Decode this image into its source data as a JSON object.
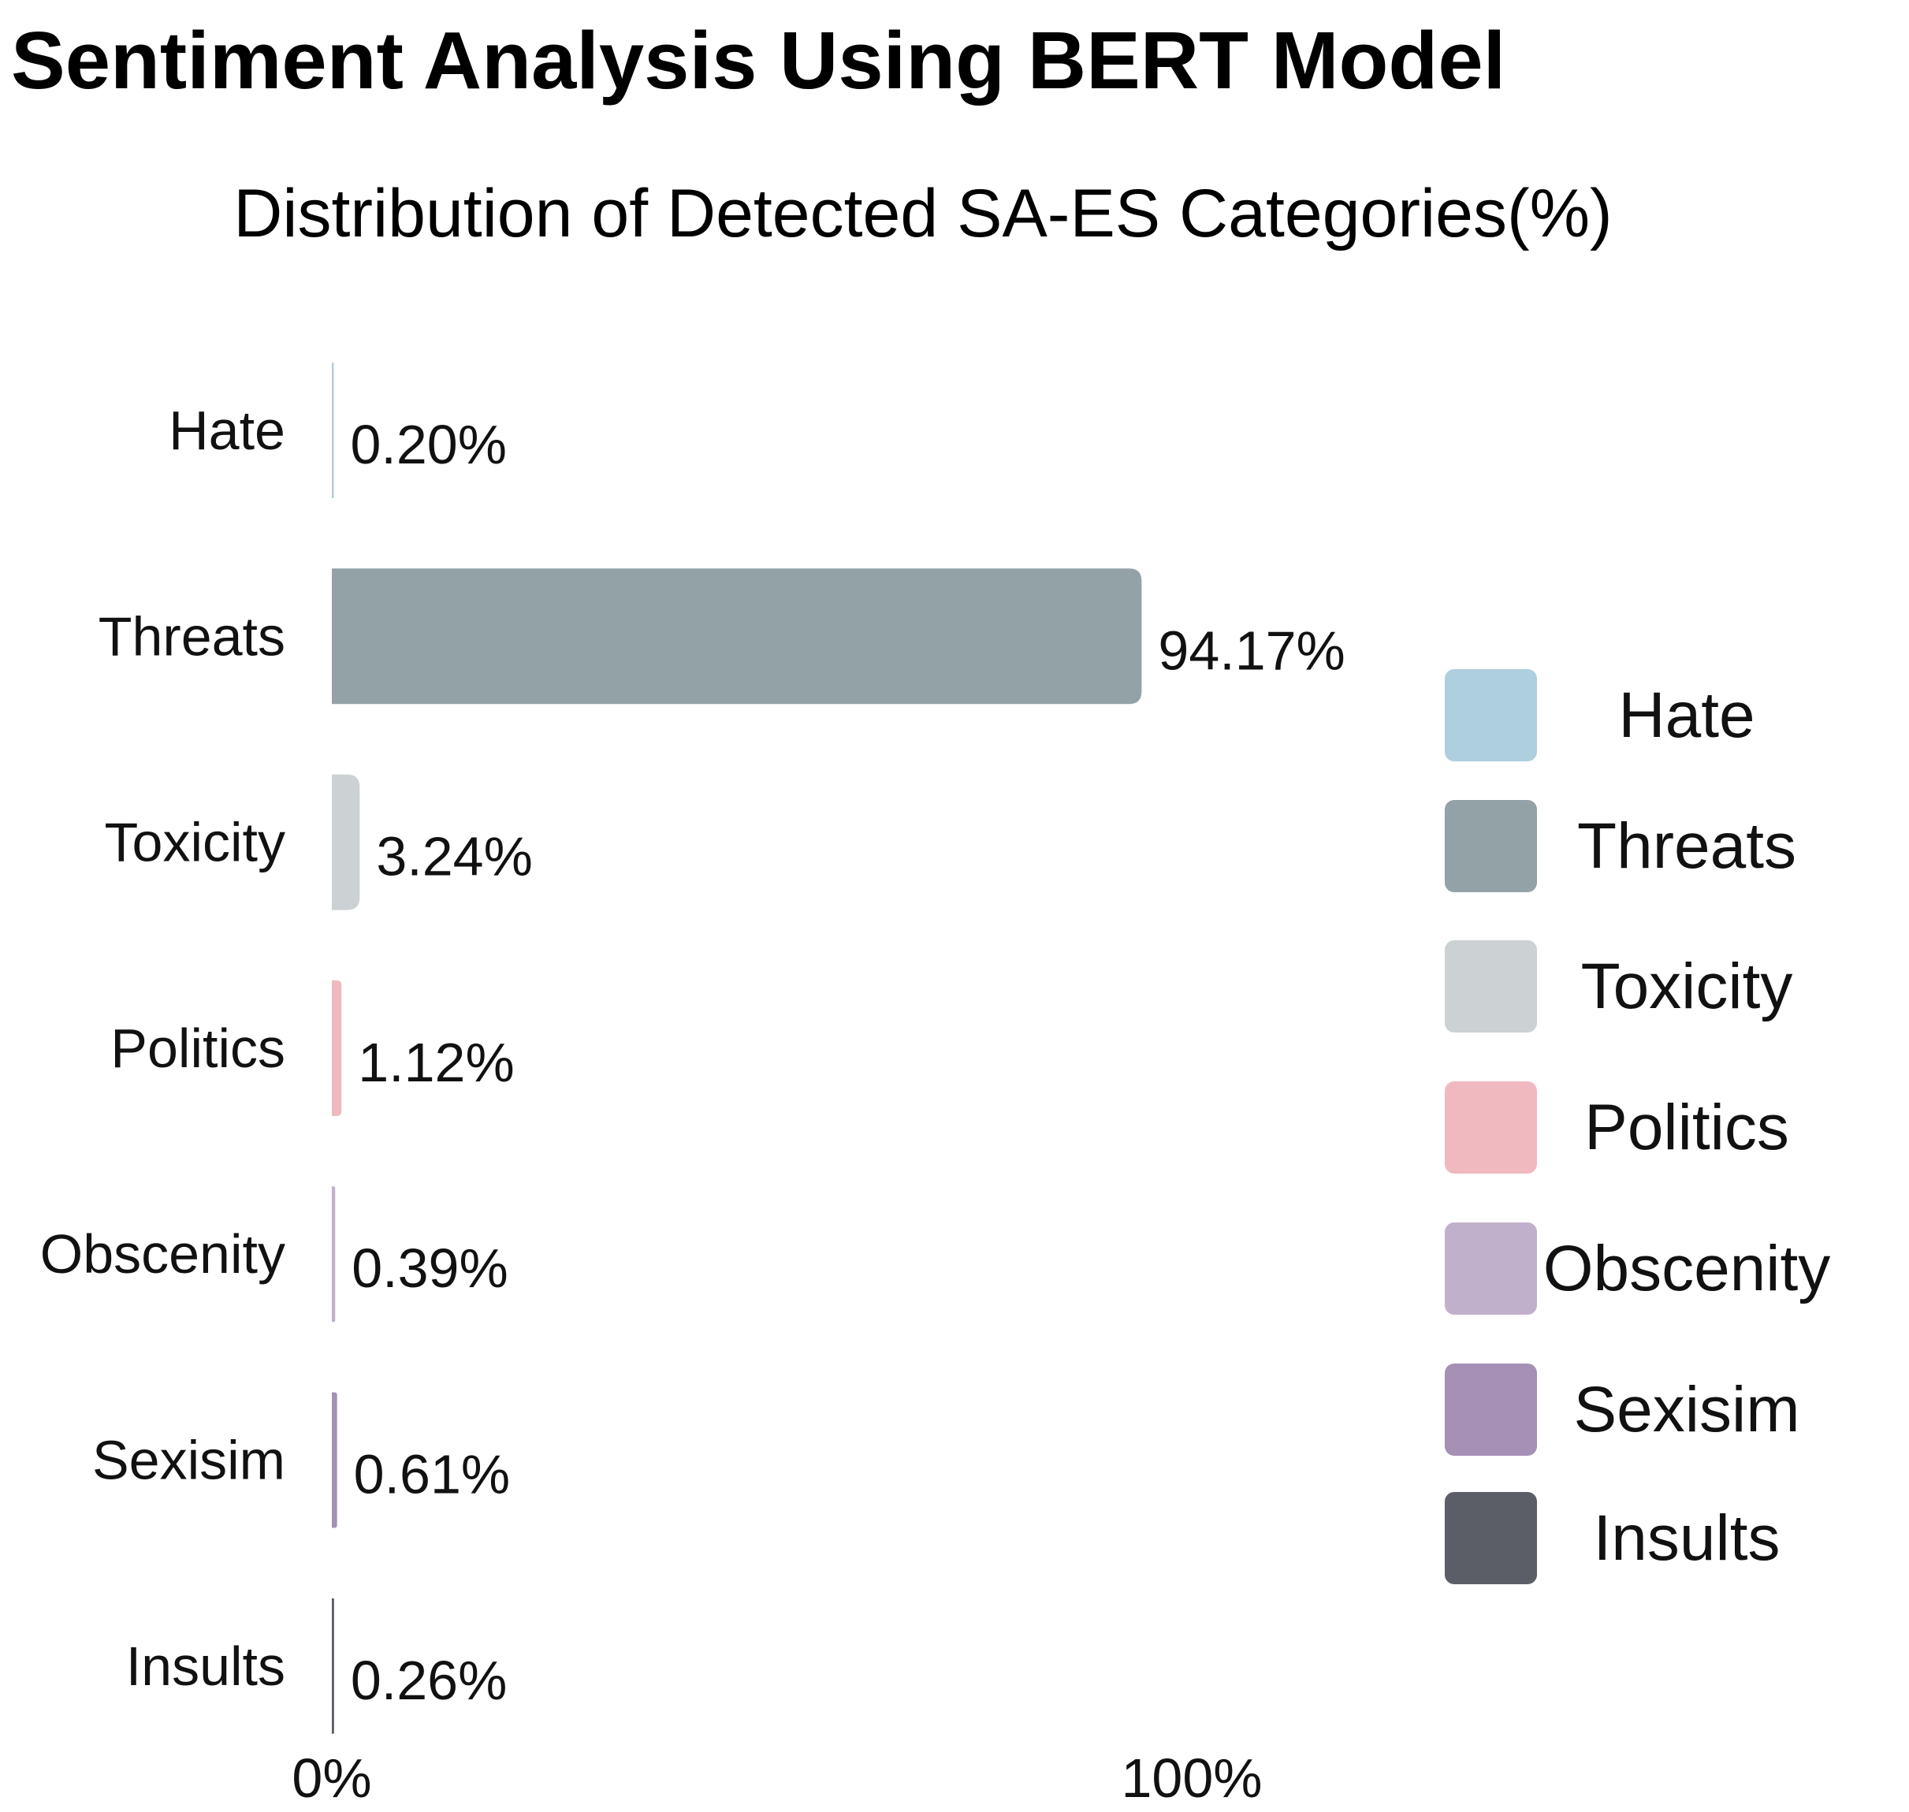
{
  "chart_data": {
    "type": "bar",
    "orientation": "horizontal",
    "title": "Sentiment Analysis Using BERT Model",
    "subtitle": "Distribution of Detected SA-ES Categories(%)",
    "categories": [
      "Hate",
      "Threats",
      "Toxicity",
      "Politics",
      "Obscenity",
      "Sexisim",
      "Insults"
    ],
    "values": [
      0.2,
      94.17,
      3.24,
      1.12,
      0.39,
      0.61,
      0.26
    ],
    "value_labels": [
      "0.20%",
      "94.17%",
      "3.24%",
      "1.12%",
      "0.39%",
      "0.61%",
      "0.26%"
    ],
    "colors": [
      "#aecfdd",
      "#93a2a7",
      "#ccd1d4",
      "#f0b9bf",
      "#c1b0cb",
      "#a690b6",
      "#5b5e66"
    ],
    "xlim": [
      0,
      100
    ],
    "x_ticks": [
      0,
      100
    ],
    "x_tick_labels": [
      "0%",
      "100%"
    ],
    "xlabel": "",
    "ylabel": "",
    "grid": false,
    "legend": {
      "placement": "right",
      "entries": [
        "Hate",
        "Threats",
        "Toxicity",
        "Politics",
        "Obscenity",
        "Sexisim",
        "Insults"
      ]
    }
  }
}
